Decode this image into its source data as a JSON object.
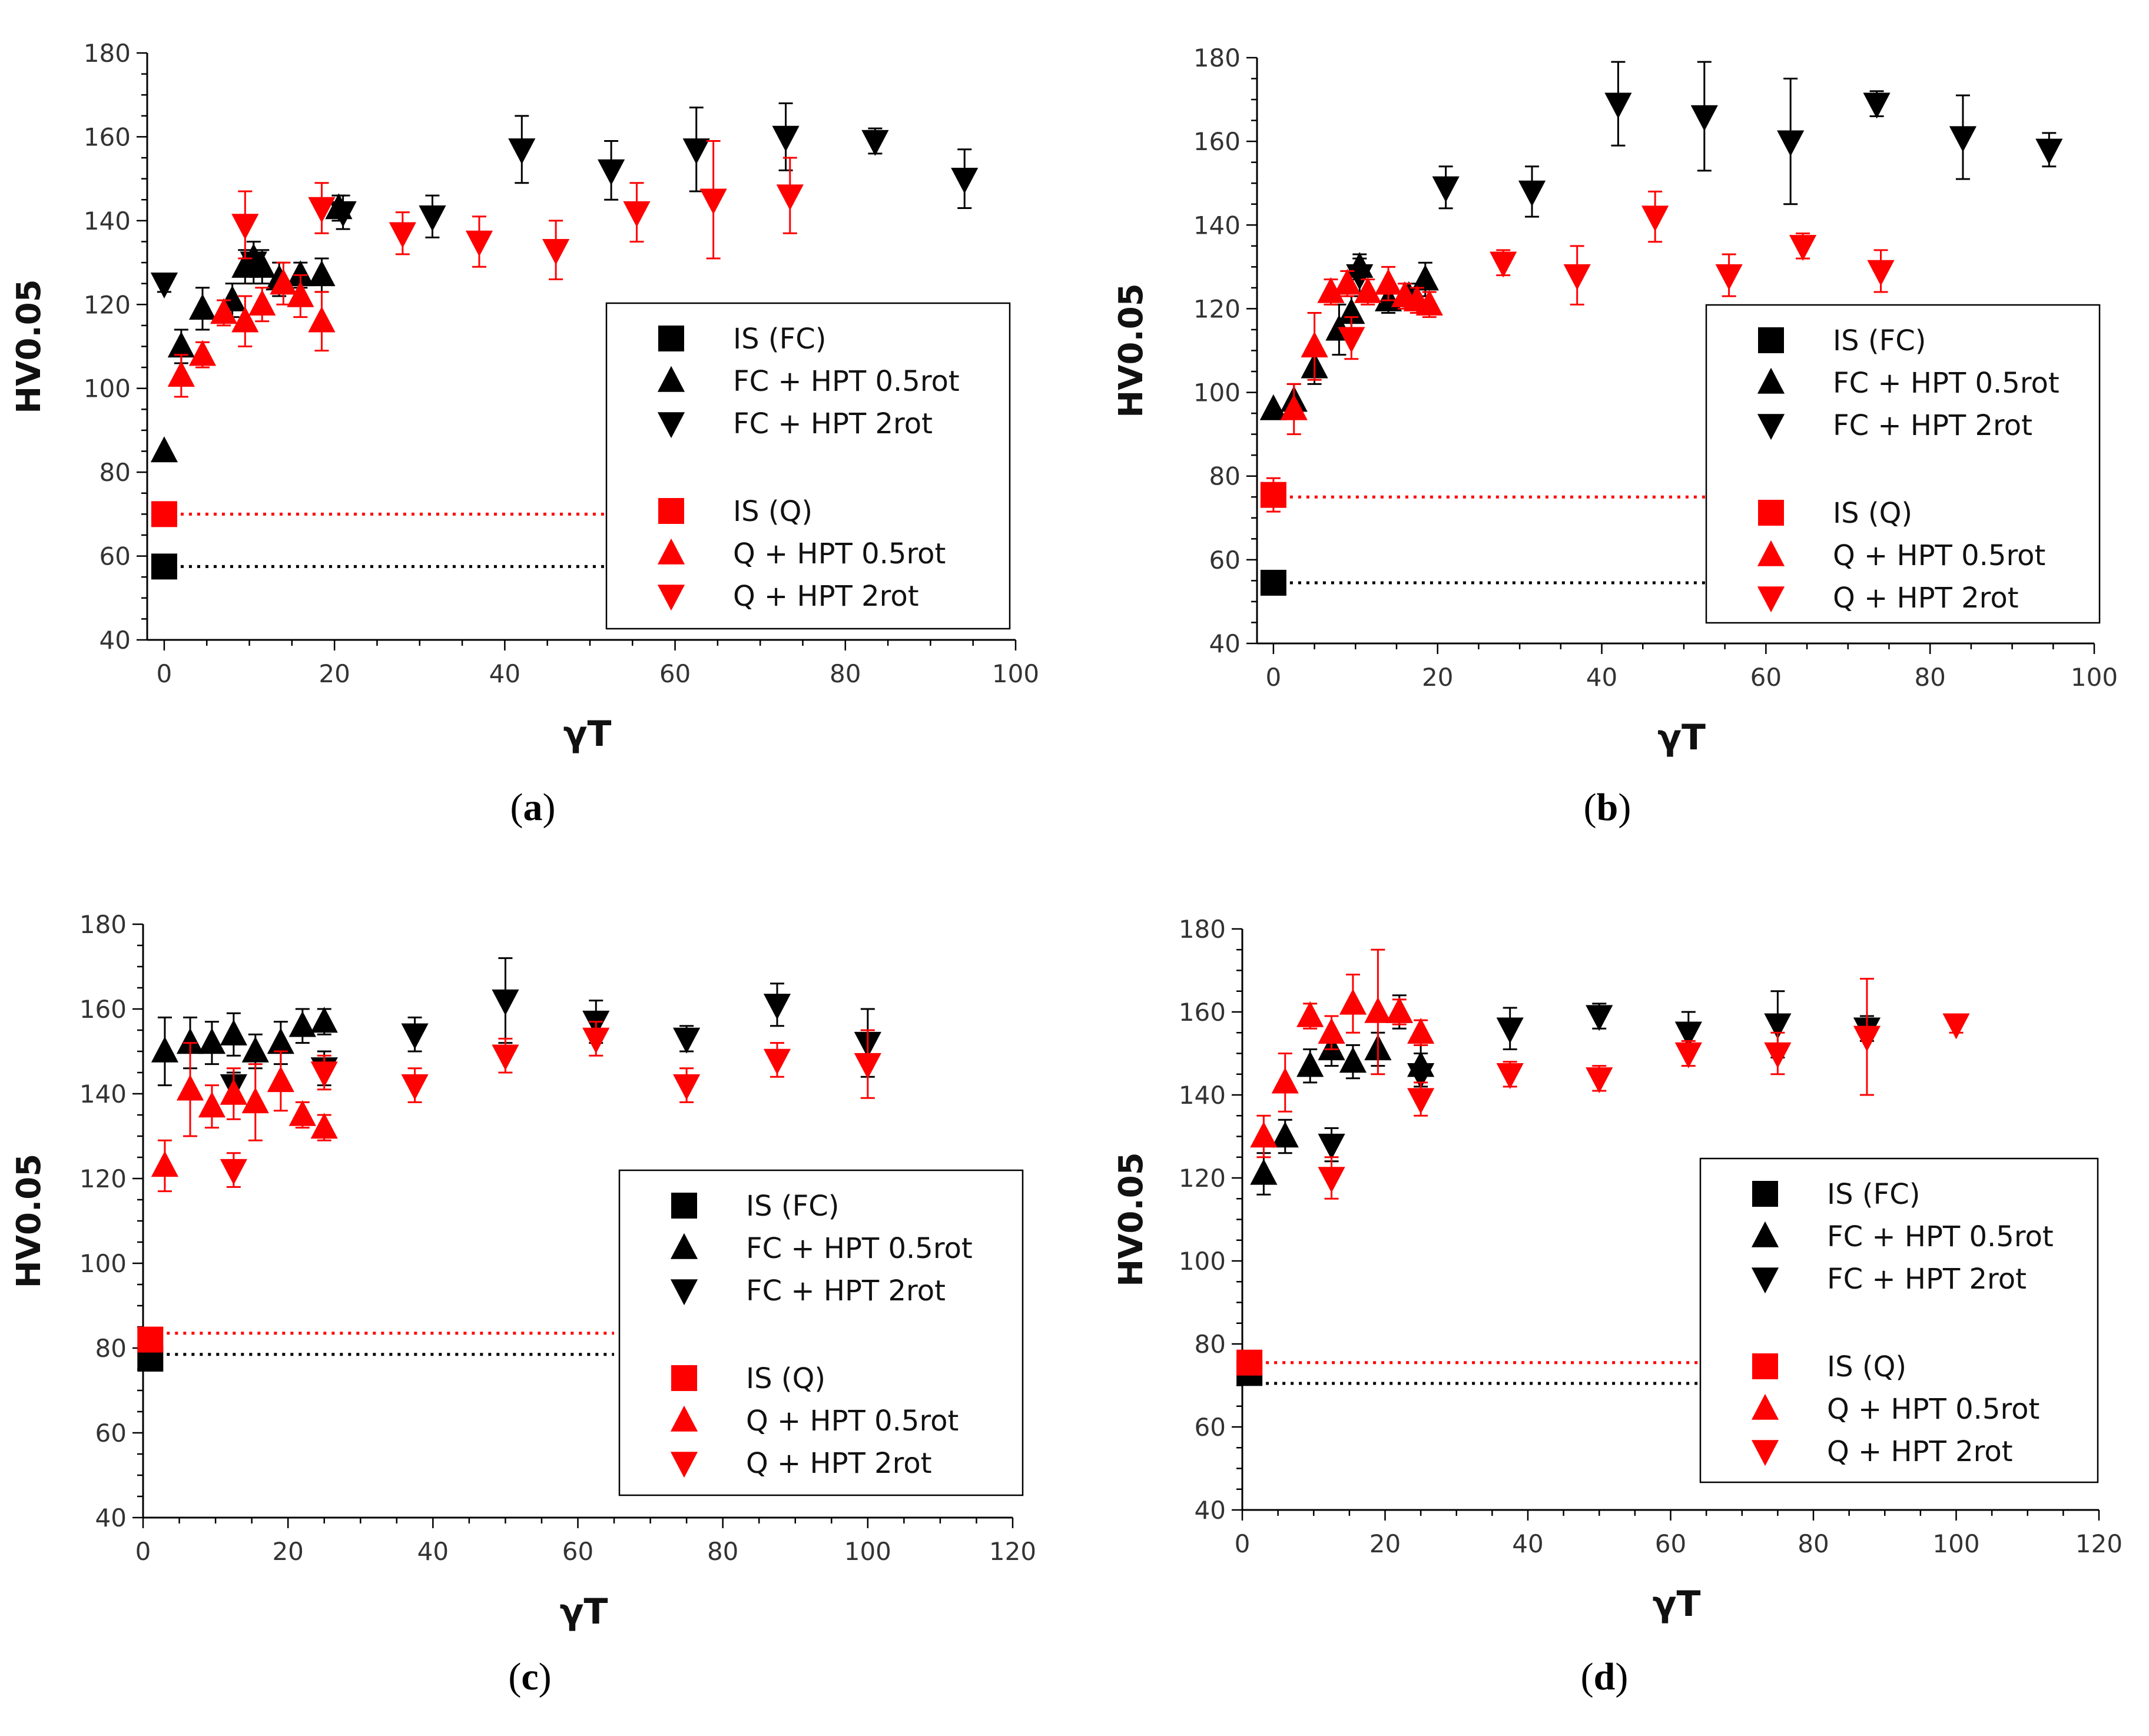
{
  "chart_data": [
    {
      "type": "scatter",
      "panel_label": "(a)",
      "panel_letter": "a",
      "xlabel": "γT",
      "ylabel": "HV0.05",
      "xlim": [
        -2,
        100
      ],
      "ylim": [
        40,
        180
      ],
      "xticks": [
        0,
        20,
        40,
        60,
        80,
        100
      ],
      "yticks": [
        40,
        60,
        80,
        100,
        120,
        140,
        160,
        180
      ],
      "legend": [
        "IS (FC)",
        "FC + HPT 0.5rot",
        "FC + HPT 2rot",
        "IS (Q)",
        "Q + HPT 0.5rot",
        "Q + HPT 2rot"
      ],
      "reference_lines": [
        {
          "name": "IS (FC)",
          "color": "#000000",
          "x0": 0,
          "x1": 52,
          "y": 57.5
        },
        {
          "name": "IS (Q)",
          "color": "#ff0000",
          "x0": 0,
          "x1": 52,
          "y": 70
        }
      ],
      "series": [
        {
          "name": "IS (FC)",
          "marker": "square",
          "color": "#000000",
          "points": [
            [
              0,
              57.5,
              0
            ]
          ]
        },
        {
          "name": "FC + HPT 0.5rot",
          "marker": "triangle-up",
          "color": "#000000",
          "points": [
            [
              0,
              85,
              0
            ],
            [
              2,
              110,
              4
            ],
            [
              4.5,
              119,
              5
            ],
            [
              8,
              121,
              4
            ],
            [
              9.5,
              129,
              4
            ],
            [
              10.5,
              131,
              4
            ],
            [
              11.5,
              129,
              4
            ],
            [
              13.5,
              126,
              4
            ],
            [
              16,
              127,
              3
            ],
            [
              18.5,
              127,
              4
            ],
            [
              20.5,
              143,
              3
            ]
          ]
        },
        {
          "name": "FC + HPT 2rot",
          "marker": "triangle-down",
          "color": "#000000",
          "points": [
            [
              0,
              125,
              2
            ],
            [
              10.5,
              130,
              5
            ],
            [
              21,
              142,
              4
            ],
            [
              31.5,
              141,
              5
            ],
            [
              42,
              157,
              8
            ],
            [
              52.5,
              152,
              7
            ],
            [
              62.5,
              157,
              10
            ],
            [
              73,
              160,
              8
            ],
            [
              83.5,
              159,
              3
            ],
            [
              94,
              150,
              7
            ]
          ]
        },
        {
          "name": "IS (Q)",
          "marker": "square",
          "color": "#ff0000",
          "points": [
            [
              0,
              70,
              0
            ]
          ]
        },
        {
          "name": "Q + HPT 0.5rot",
          "marker": "triangle-up",
          "color": "#ff0000",
          "points": [
            [
              2,
              103,
              5
            ],
            [
              4.5,
              108,
              3
            ],
            [
              7,
              118,
              3
            ],
            [
              9.5,
              116,
              6
            ],
            [
              11.5,
              120,
              4
            ],
            [
              14,
              125,
              5
            ],
            [
              16,
              122,
              5
            ],
            [
              18.5,
              116,
              7
            ]
          ]
        },
        {
          "name": "Q + HPT 2rot",
          "marker": "triangle-down",
          "color": "#ff0000",
          "points": [
            [
              9.5,
              139,
              8
            ],
            [
              18.5,
              143,
              6
            ],
            [
              28,
              137,
              5
            ],
            [
              37,
              135,
              6
            ],
            [
              46,
              133,
              7
            ],
            [
              55.5,
              142,
              7
            ],
            [
              64.5,
              145,
              14
            ],
            [
              73.5,
              146,
              9
            ]
          ]
        }
      ]
    },
    {
      "type": "scatter",
      "panel_label": "(b)",
      "panel_letter": "b",
      "xlabel": "γT",
      "ylabel": "HV0.05",
      "xlim": [
        -2,
        100
      ],
      "ylim": [
        40,
        180
      ],
      "xticks": [
        0,
        20,
        40,
        60,
        80,
        100
      ],
      "yticks": [
        40,
        60,
        80,
        100,
        120,
        140,
        160,
        180
      ],
      "legend": [
        "IS (FC)",
        "FC + HPT 0.5rot",
        "FC + HPT 2rot",
        "IS (Q)",
        "Q + HPT 0.5rot",
        "Q + HPT 2rot"
      ],
      "reference_lines": [
        {
          "name": "IS (FC)",
          "color": "#000000",
          "x0": 0,
          "x1": 54,
          "y": 54.5
        },
        {
          "name": "IS (Q)",
          "color": "#ff0000",
          "x0": 0,
          "x1": 54,
          "y": 75
        }
      ],
      "series": [
        {
          "name": "IS (FC)",
          "marker": "square",
          "color": "#000000",
          "points": [
            [
              0,
              54.5,
              0
            ]
          ]
        },
        {
          "name": "FC + HPT 0.5rot",
          "marker": "triangle-up",
          "color": "#000000",
          "points": [
            [
              0,
              96,
              0
            ],
            [
              2.5,
              98,
              4
            ],
            [
              5,
              106,
              4
            ],
            [
              8,
              115,
              6
            ],
            [
              9.5,
              119,
              4
            ],
            [
              10.5,
              130,
              3
            ],
            [
              14,
              122,
              3
            ],
            [
              16.5,
              123,
              3
            ],
            [
              18.5,
              127,
              4
            ]
          ]
        },
        {
          "name": "FC + HPT 2rot",
          "marker": "triangle-down",
          "color": "#000000",
          "points": [
            [
              10.5,
              128,
              4
            ],
            [
              21,
              149,
              5
            ],
            [
              31.5,
              148,
              6
            ],
            [
              42,
              169,
              10
            ],
            [
              52.5,
              166,
              13
            ],
            [
              63,
              160,
              15
            ],
            [
              73.5,
              169,
              3
            ],
            [
              84,
              161,
              10
            ],
            [
              94.5,
              158,
              4
            ]
          ]
        },
        {
          "name": "IS (Q)",
          "marker": "square",
          "color": "#ff0000",
          "points": [
            [
              0,
              75.5,
              4
            ]
          ]
        },
        {
          "name": "Q + HPT 0.5rot",
          "marker": "triangle-up",
          "color": "#ff0000",
          "points": [
            [
              2.5,
              96,
              6
            ],
            [
              5,
              111,
              8
            ],
            [
              7,
              124,
              3
            ],
            [
              9,
              126,
              3
            ],
            [
              11.5,
              124,
              3
            ],
            [
              14,
              126,
              4
            ],
            [
              16,
              123,
              3
            ],
            [
              17.5,
              122,
              3
            ],
            [
              19,
              121,
              3
            ]
          ]
        },
        {
          "name": "Q + HPT 2rot",
          "marker": "triangle-down",
          "color": "#ff0000",
          "points": [
            [
              9.5,
              113,
              5
            ],
            [
              28,
              131,
              3
            ],
            [
              37,
              128,
              7
            ],
            [
              46.5,
              142,
              6
            ],
            [
              55.5,
              128,
              5
            ],
            [
              64.5,
              135,
              3
            ],
            [
              74,
              129,
              5
            ]
          ]
        }
      ]
    },
    {
      "type": "scatter",
      "panel_label": "(c)",
      "panel_letter": "c",
      "xlabel": "γT",
      "ylabel": "HV0.05",
      "xlim": [
        0,
        120
      ],
      "ylim": [
        40,
        180
      ],
      "xticks": [
        0,
        20,
        40,
        60,
        80,
        100,
        120
      ],
      "yticks": [
        40,
        60,
        80,
        100,
        120,
        140,
        160,
        180
      ],
      "legend": [
        "IS (FC)",
        "FC + HPT 0.5rot",
        "FC + HPT 2rot",
        "IS (Q)",
        "Q + HPT 0.5rot",
        "Q + HPT 2rot"
      ],
      "reference_lines": [
        {
          "name": "IS (FC)",
          "color": "#000000",
          "x0": 1,
          "x1": 65,
          "y": 78.5
        },
        {
          "name": "IS (Q)",
          "color": "#ff0000",
          "x0": 1,
          "x1": 65,
          "y": 83.5
        }
      ],
      "series": [
        {
          "name": "IS (FC)",
          "marker": "square",
          "color": "#000000",
          "points": [
            [
              1,
              77.5,
              0
            ]
          ]
        },
        {
          "name": "FC + HPT 0.5rot",
          "marker": "triangle-up",
          "color": "#000000",
          "points": [
            [
              3,
              150,
              8
            ],
            [
              6.5,
              152,
              6
            ],
            [
              9.5,
              152,
              5
            ],
            [
              12.5,
              154,
              5
            ],
            [
              15.5,
              150,
              4
            ],
            [
              19,
              152,
              5
            ],
            [
              22,
              156,
              4
            ],
            [
              25,
              157,
              3
            ]
          ]
        },
        {
          "name": "FC + HPT 2rot",
          "marker": "triangle-down",
          "color": "#000000",
          "points": [
            [
              12.5,
              142,
              3
            ],
            [
              25,
              146,
              4
            ],
            [
              37.5,
              154,
              4
            ],
            [
              50,
              162,
              10
            ],
            [
              62.5,
              157,
              5
            ],
            [
              75,
              153,
              3
            ],
            [
              87.5,
              161,
              5
            ],
            [
              100,
              152,
              8
            ]
          ]
        },
        {
          "name": "IS (Q)",
          "marker": "square",
          "color": "#ff0000",
          "points": [
            [
              1,
              82,
              0
            ]
          ]
        },
        {
          "name": "Q + HPT 0.5rot",
          "marker": "triangle-up",
          "color": "#ff0000",
          "points": [
            [
              3,
              123,
              6
            ],
            [
              6.5,
              141,
              11
            ],
            [
              9.5,
              137,
              5
            ],
            [
              12.5,
              140,
              6
            ],
            [
              15.5,
              138,
              9
            ],
            [
              19,
              143,
              7
            ],
            [
              22,
              135,
              3
            ],
            [
              25,
              132,
              3
            ]
          ]
        },
        {
          "name": "Q + HPT 2rot",
          "marker": "triangle-down",
          "color": "#ff0000",
          "points": [
            [
              12.5,
              122,
              4
            ],
            [
              25,
              145,
              4
            ],
            [
              37.5,
              142,
              4
            ],
            [
              50,
              149,
              4
            ],
            [
              62.5,
              153,
              4
            ],
            [
              75,
              142,
              4
            ],
            [
              87.5,
              148,
              4
            ],
            [
              100,
              147,
              8
            ]
          ]
        }
      ]
    },
    {
      "type": "scatter",
      "panel_label": "(d)",
      "panel_letter": "d",
      "xlabel": "γT",
      "ylabel": "HV0.05",
      "xlim": [
        0,
        120
      ],
      "ylim": [
        40,
        180
      ],
      "xticks": [
        0,
        20,
        40,
        60,
        80,
        100,
        120
      ],
      "yticks": [
        40,
        60,
        80,
        100,
        120,
        140,
        160,
        180
      ],
      "legend": [
        "IS (FC)",
        "FC + HPT 0.5rot",
        "FC + HPT 2rot",
        "IS (Q)",
        "Q + HPT 0.5rot",
        "Q + HPT 2rot"
      ],
      "reference_lines": [
        {
          "name": "IS (FC)",
          "color": "#000000",
          "x0": 1,
          "x1": 64,
          "y": 70.5
        },
        {
          "name": "IS (Q)",
          "color": "#ff0000",
          "x0": 1,
          "x1": 64,
          "y": 75.5
        }
      ],
      "series": [
        {
          "name": "IS (FC)",
          "marker": "square",
          "color": "#000000",
          "points": [
            [
              1,
              73,
              0
            ]
          ]
        },
        {
          "name": "FC + HPT 0.5rot",
          "marker": "triangle-up",
          "color": "#000000",
          "points": [
            [
              3,
              121,
              5
            ],
            [
              6,
              130,
              4
            ],
            [
              9.5,
              147,
              4
            ],
            [
              12.5,
              151,
              4
            ],
            [
              15.5,
              148,
              4
            ],
            [
              19,
              151,
              4
            ],
            [
              22,
              160,
              4
            ],
            [
              25,
              147,
              5
            ]
          ]
        },
        {
          "name": "FC + HPT 2rot",
          "marker": "triangle-down",
          "color": "#000000",
          "points": [
            [
              12.5,
              128,
              4
            ],
            [
              25,
              145,
              5
            ],
            [
              37.5,
              156,
              5
            ],
            [
              50,
              159,
              3
            ],
            [
              62.5,
              155,
              5
            ],
            [
              75,
              157,
              8
            ],
            [
              87.5,
              156,
              3
            ]
          ]
        },
        {
          "name": "IS (Q)",
          "marker": "square",
          "color": "#ff0000",
          "points": [
            [
              1,
              75.5,
              0
            ]
          ]
        },
        {
          "name": "Q + HPT 0.5rot",
          "marker": "triangle-up",
          "color": "#ff0000",
          "points": [
            [
              3,
              130,
              5
            ],
            [
              6,
              143,
              7
            ],
            [
              9.5,
              159,
              3
            ],
            [
              12.5,
              155,
              4
            ],
            [
              15.5,
              162,
              7
            ],
            [
              19,
              160,
              15
            ],
            [
              22,
              160,
              3
            ],
            [
              25,
              155,
              3
            ]
          ]
        },
        {
          "name": "Q + HPT 2rot",
          "marker": "triangle-down",
          "color": "#ff0000",
          "points": [
            [
              12.5,
              120,
              5
            ],
            [
              25,
              139,
              4
            ],
            [
              37.5,
              145,
              3
            ],
            [
              50,
              144,
              3
            ],
            [
              62.5,
              150,
              3
            ],
            [
              75,
              150,
              5
            ],
            [
              87.5,
              154,
              14
            ],
            [
              100,
              157,
              2
            ]
          ]
        }
      ]
    }
  ]
}
